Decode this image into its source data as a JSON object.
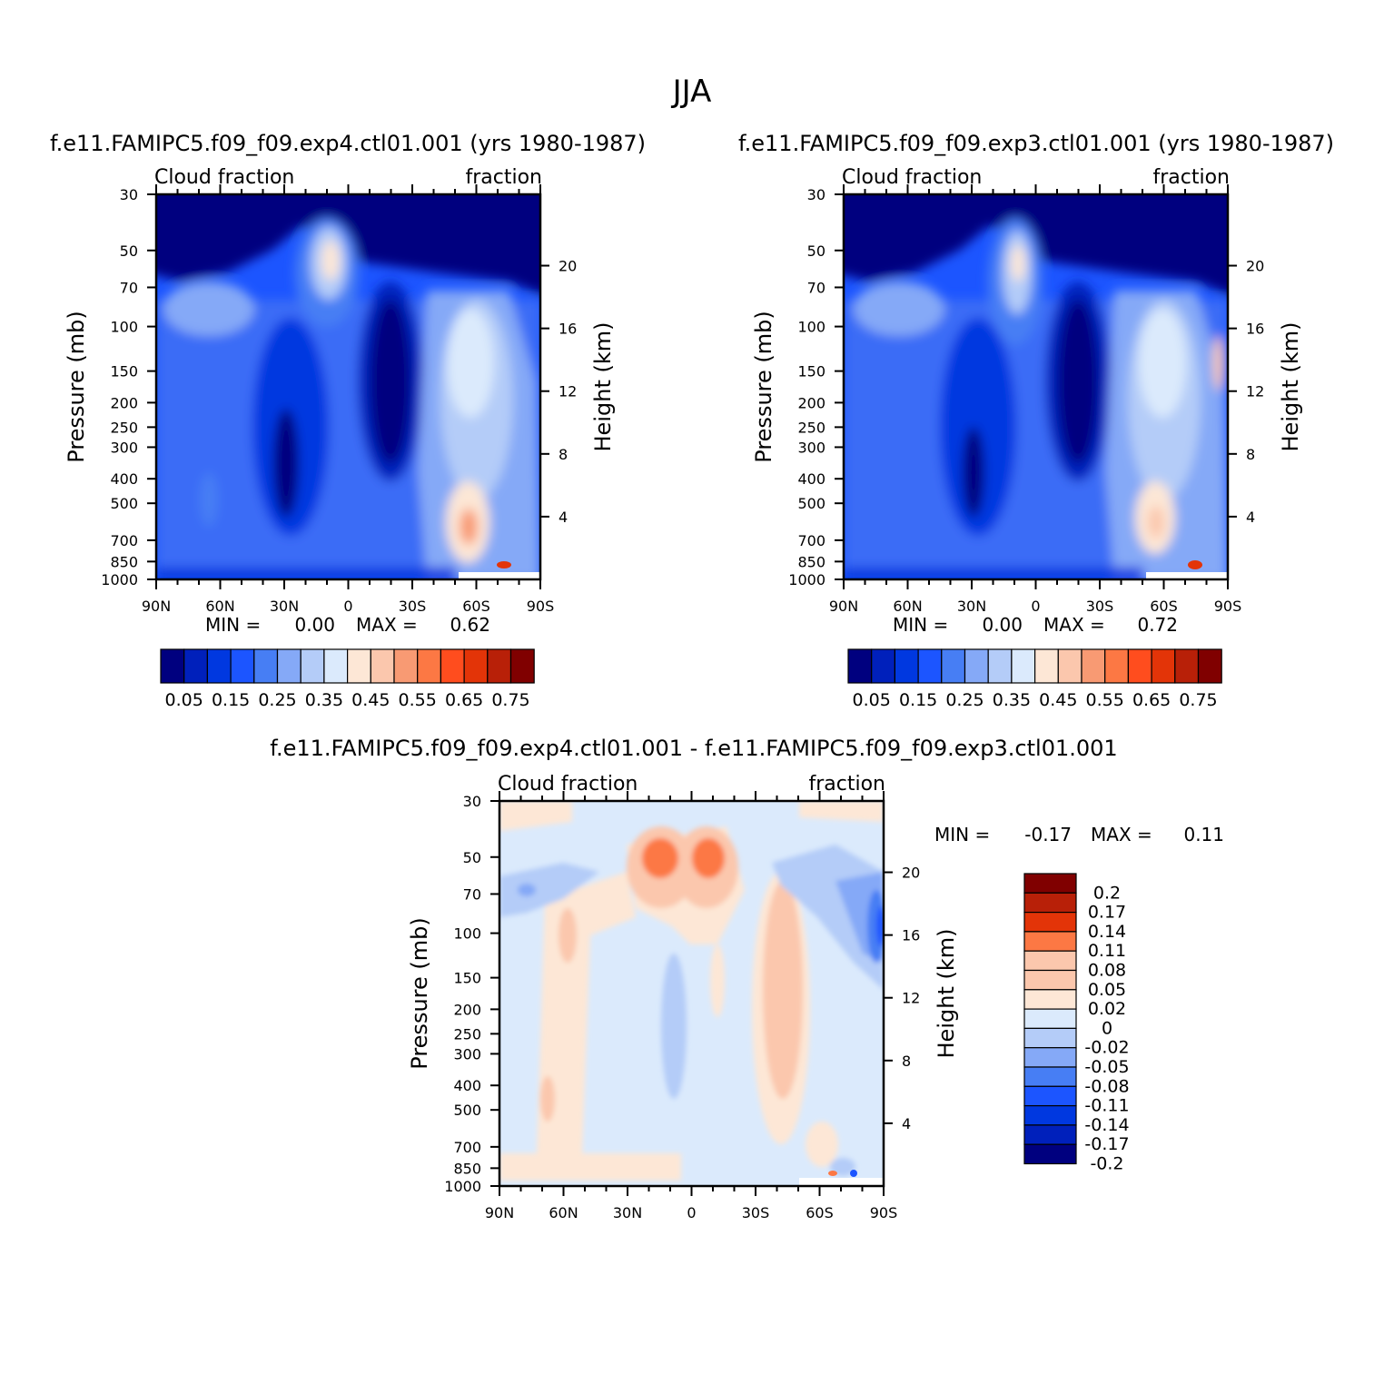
{
  "page": {
    "title": "JJA"
  },
  "chart_data": [
    {
      "type": "heatmap",
      "id": "exp4",
      "title": "f.e11.FAMIPC5.f09_f09.exp4.ctl01.001 (yrs 1980-1987)",
      "left_label": "Cloud fraction",
      "right_label": "fraction",
      "ylabel": "Pressure (mb)",
      "y2label": "Height (km)",
      "x_ticks": [
        "90N",
        "60N",
        "30N",
        "0",
        "30S",
        "60S",
        "90S"
      ],
      "x_range": [
        90,
        -90
      ],
      "y_ticks": [
        30,
        50,
        70,
        100,
        150,
        200,
        250,
        300,
        400,
        500,
        700,
        850,
        1000
      ],
      "y_range_mb": [
        30,
        1000
      ],
      "height_ticks_km": [
        20,
        16,
        12,
        8,
        4
      ],
      "stats": {
        "min_label": "MIN =",
        "min": "0.00",
        "max_label": "MAX =",
        "max": "0.62"
      },
      "colorbar": {
        "colors": [
          "#00007f",
          "#0020bb",
          "#0038e0",
          "#1c55ff",
          "#477ef4",
          "#85a9f7",
          "#b4ccf8",
          "#dbeafc",
          "#fde7d6",
          "#fbc7ad",
          "#f89a73",
          "#fc7844",
          "#ff4d1e",
          "#e33408",
          "#b82008",
          "#800000"
        ],
        "labels": [
          "0.05",
          "0.15",
          "0.25",
          "0.35",
          "0.45",
          "0.55",
          "0.65",
          "0.75"
        ]
      }
    },
    {
      "type": "heatmap",
      "id": "exp3",
      "title": "f.e11.FAMIPC5.f09_f09.exp3.ctl01.001 (yrs 1980-1987)",
      "left_label": "Cloud fraction",
      "right_label": "fraction",
      "ylabel": "Pressure (mb)",
      "y2label": "Height (km)",
      "x_ticks": [
        "90N",
        "60N",
        "30N",
        "0",
        "30S",
        "60S",
        "90S"
      ],
      "x_range": [
        90,
        -90
      ],
      "y_ticks": [
        30,
        50,
        70,
        100,
        150,
        200,
        250,
        300,
        400,
        500,
        700,
        850,
        1000
      ],
      "y_range_mb": [
        30,
        1000
      ],
      "height_ticks_km": [
        20,
        16,
        12,
        8,
        4
      ],
      "stats": {
        "min_label": "MIN =",
        "min": "0.00",
        "max_label": "MAX =",
        "max": "0.72"
      },
      "colorbar": {
        "colors": [
          "#00007f",
          "#0020bb",
          "#0038e0",
          "#1c55ff",
          "#477ef4",
          "#85a9f7",
          "#b4ccf8",
          "#dbeafc",
          "#fde7d6",
          "#fbc7ad",
          "#f89a73",
          "#fc7844",
          "#ff4d1e",
          "#e33408",
          "#b82008",
          "#800000"
        ],
        "labels": [
          "0.05",
          "0.15",
          "0.25",
          "0.35",
          "0.45",
          "0.55",
          "0.65",
          "0.75"
        ]
      }
    },
    {
      "type": "heatmap",
      "id": "diff",
      "title": "f.e11.FAMIPC5.f09_f09.exp4.ctl01.001 - f.e11.FAMIPC5.f09_f09.exp3.ctl01.001",
      "left_label": "Cloud fraction",
      "right_label": "fraction",
      "ylabel": "Pressure (mb)",
      "y2label": "Height (km)",
      "x_ticks": [
        "90N",
        "60N",
        "30N",
        "0",
        "30S",
        "60S",
        "90S"
      ],
      "x_range": [
        90,
        -90
      ],
      "y_ticks": [
        30,
        50,
        70,
        100,
        150,
        200,
        250,
        300,
        400,
        500,
        700,
        850,
        1000
      ],
      "y_range_mb": [
        30,
        1000
      ],
      "height_ticks_km": [
        20,
        16,
        12,
        8,
        4
      ],
      "stats": {
        "min_label": "MIN =",
        "min": "-0.17",
        "max_label": "MAX =",
        "max": "0.11"
      },
      "colorbar": {
        "colors_top_to_bottom": [
          "#800000",
          "#b82008",
          "#e33408",
          "#fc7844",
          "#fbc7ad",
          "#fbc7ad",
          "#fde7d6",
          "#dbeafc",
          "#b4ccf8",
          "#85a9f7",
          "#477ef4",
          "#1c55ff",
          "#0038e0",
          "#0020bb",
          "#00007f"
        ],
        "labels_top_to_bottom": [
          "0.2",
          "0.17",
          "0.14",
          "0.11",
          "0.08",
          "0.05",
          "0.02",
          "0",
          "-0.02",
          "-0.05",
          "-0.08",
          "-0.11",
          "-0.14",
          "-0.17",
          "-0.2"
        ]
      }
    }
  ]
}
